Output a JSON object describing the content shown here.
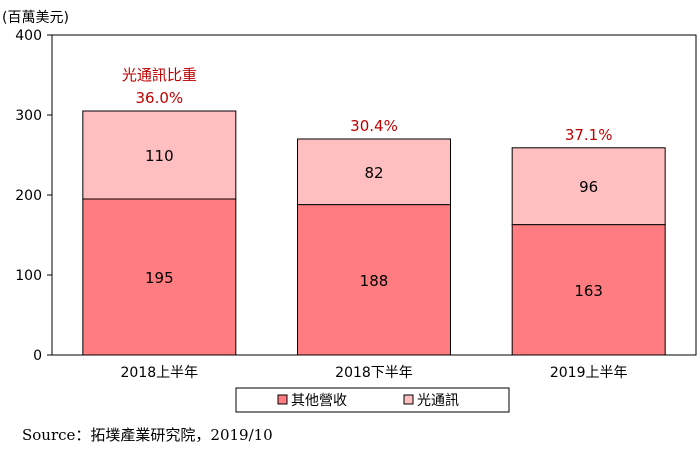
{
  "chart_data": {
    "type": "bar",
    "stacked": true,
    "unit_label": "(百萬美元)",
    "categories": [
      "2018上半年",
      "2018下半年",
      "2019上半年"
    ],
    "ylim": [
      0,
      400
    ],
    "yticks": [
      0,
      100,
      200,
      300,
      400
    ],
    "series": [
      {
        "name": "其他營收",
        "values": [
          195,
          188,
          163
        ],
        "color": "#ff7c80"
      },
      {
        "name": "光通訊",
        "values": [
          110,
          82,
          96
        ],
        "color": "#ffbfc0"
      }
    ],
    "share_title": "光通訊比重",
    "share_labels": [
      "36.0%",
      "30.4%",
      "37.1%"
    ],
    "share_color": "#c00000",
    "legend_position": "bottom",
    "grid": false
  },
  "source": "Source：拓墣產業研究院，2019/10"
}
